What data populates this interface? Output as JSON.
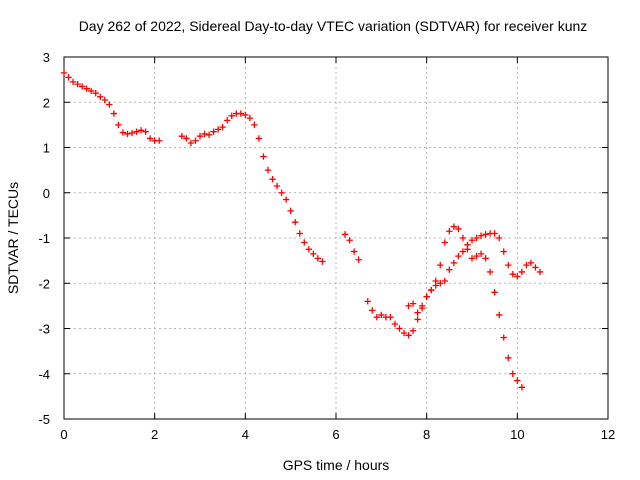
{
  "chart_data": {
    "type": "scatter",
    "title": "Day 262 of 2022, Sidereal Day-to-day VTEC variation (SDTVAR) for receiver kunz",
    "xlabel": "GPS time / hours",
    "ylabel": "SDTVAR / TECUs",
    "xlim": [
      0,
      12
    ],
    "ylim": [
      -5,
      3
    ],
    "xticks": [
      "0",
      "2",
      "4",
      "6",
      "8",
      "10",
      "12"
    ],
    "yticks": [
      "3",
      "2",
      "1",
      "0",
      "-1",
      "-2",
      "-3",
      "-4",
      "-5"
    ],
    "grid": true,
    "marker": "+",
    "color": "#ff0000",
    "series": [
      {
        "segments": [
          [
            [
              0.0,
              2.65
            ],
            [
              0.1,
              2.55
            ],
            [
              0.2,
              2.45
            ],
            [
              0.3,
              2.4
            ],
            [
              0.4,
              2.35
            ],
            [
              0.5,
              2.3
            ],
            [
              0.6,
              2.25
            ],
            [
              0.7,
              2.2
            ],
            [
              0.8,
              2.12
            ],
            [
              0.9,
              2.05
            ],
            [
              1.0,
              1.95
            ],
            [
              1.1,
              1.75
            ],
            [
              1.2,
              1.5
            ],
            [
              1.3,
              1.33
            ],
            [
              1.4,
              1.3
            ],
            [
              1.5,
              1.32
            ],
            [
              1.6,
              1.35
            ],
            [
              1.7,
              1.38
            ],
            [
              1.8,
              1.35
            ],
            [
              1.9,
              1.2
            ],
            [
              2.0,
              1.15
            ],
            [
              2.1,
              1.15
            ]
          ],
          [
            [
              2.6,
              1.25
            ],
            [
              2.7,
              1.2
            ],
            [
              2.8,
              1.1
            ],
            [
              2.9,
              1.15
            ],
            [
              3.0,
              1.25
            ],
            [
              3.1,
              1.3
            ],
            [
              3.2,
              1.28
            ],
            [
              3.3,
              1.35
            ],
            [
              3.4,
              1.4
            ],
            [
              3.5,
              1.45
            ],
            [
              3.6,
              1.6
            ],
            [
              3.7,
              1.7
            ],
            [
              3.8,
              1.75
            ],
            [
              3.9,
              1.75
            ],
            [
              4.0,
              1.72
            ],
            [
              4.1,
              1.65
            ],
            [
              4.2,
              1.5
            ],
            [
              4.3,
              1.2
            ],
            [
              4.4,
              0.8
            ],
            [
              4.5,
              0.5
            ],
            [
              4.6,
              0.3
            ],
            [
              4.7,
              0.15
            ],
            [
              4.8,
              0.0
            ],
            [
              4.9,
              -0.15
            ],
            [
              5.0,
              -0.4
            ],
            [
              5.1,
              -0.65
            ],
            [
              5.2,
              -0.9
            ],
            [
              5.3,
              -1.1
            ],
            [
              5.4,
              -1.25
            ],
            [
              5.5,
              -1.35
            ],
            [
              5.6,
              -1.45
            ],
            [
              5.7,
              -1.52
            ]
          ],
          [
            [
              6.2,
              -0.92
            ],
            [
              6.3,
              -1.05
            ],
            [
              6.4,
              -1.3
            ],
            [
              6.5,
              -1.48
            ]
          ],
          [
            [
              6.7,
              -2.4
            ],
            [
              6.8,
              -2.6
            ],
            [
              6.9,
              -2.75
            ],
            [
              7.0,
              -2.7
            ],
            [
              7.1,
              -2.75
            ],
            [
              7.2,
              -2.75
            ],
            [
              7.3,
              -2.9
            ],
            [
              7.4,
              -3.0
            ],
            [
              7.5,
              -3.1
            ],
            [
              7.6,
              -3.15
            ],
            [
              7.7,
              -3.05
            ],
            [
              7.8,
              -2.8
            ],
            [
              7.9,
              -2.55
            ],
            [
              8.0,
              -2.3
            ],
            [
              8.1,
              -2.15
            ],
            [
              8.2,
              -2.05
            ],
            [
              8.3,
              -2.0
            ],
            [
              8.4,
              -1.95
            ],
            [
              8.5,
              -1.7
            ],
            [
              8.6,
              -1.55
            ],
            [
              8.7,
              -1.4
            ],
            [
              8.8,
              -1.3
            ],
            [
              8.9,
              -1.15
            ],
            [
              9.0,
              -1.05
            ],
            [
              9.1,
              -1.0
            ],
            [
              9.2,
              -0.95
            ],
            [
              9.3,
              -0.92
            ],
            [
              9.4,
              -0.9
            ],
            [
              9.5,
              -0.9
            ],
            [
              9.6,
              -1.0
            ],
            [
              9.7,
              -1.3
            ],
            [
              9.8,
              -1.6
            ],
            [
              9.9,
              -1.8
            ],
            [
              10.0,
              -1.85
            ],
            [
              10.1,
              -1.75
            ],
            [
              10.2,
              -1.6
            ],
            [
              10.3,
              -1.55
            ],
            [
              10.4,
              -1.65
            ],
            [
              10.5,
              -1.75
            ]
          ],
          [
            [
              7.6,
              -2.5
            ],
            [
              7.7,
              -2.45
            ],
            [
              7.8,
              -2.65
            ],
            [
              7.9,
              -2.5
            ],
            [
              8.0,
              -2.3
            ],
            [
              8.1,
              -2.15
            ],
            [
              8.2,
              -1.95
            ],
            [
              8.3,
              -1.6
            ],
            [
              8.4,
              -1.1
            ],
            [
              8.5,
              -0.85
            ],
            [
              8.6,
              -0.75
            ],
            [
              8.7,
              -0.8
            ],
            [
              8.8,
              -1.0
            ],
            [
              8.9,
              -1.25
            ],
            [
              9.0,
              -1.45
            ],
            [
              9.1,
              -1.4
            ],
            [
              9.2,
              -1.35
            ],
            [
              9.3,
              -1.45
            ],
            [
              9.4,
              -1.75
            ],
            [
              9.5,
              -2.2
            ],
            [
              9.6,
              -2.7
            ],
            [
              9.7,
              -3.2
            ],
            [
              9.8,
              -3.65
            ],
            [
              9.9,
              -4.0
            ],
            [
              10.0,
              -4.15
            ],
            [
              10.1,
              -4.3
            ]
          ]
        ]
      }
    ]
  }
}
